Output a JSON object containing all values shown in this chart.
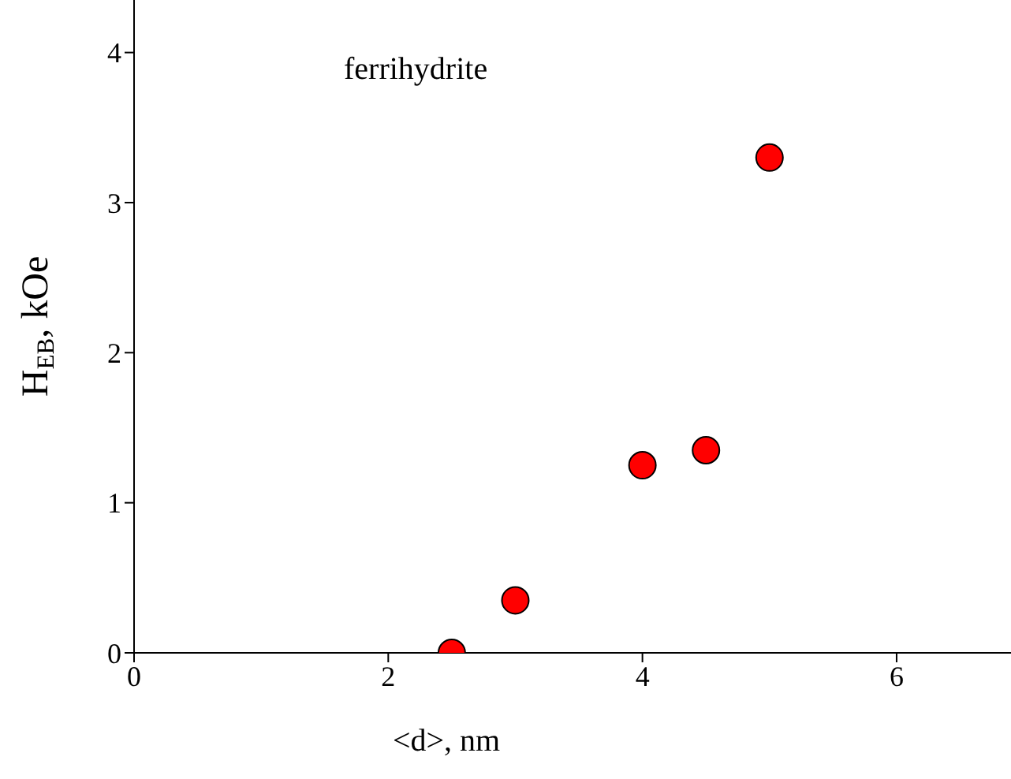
{
  "chart_data": {
    "type": "scatter",
    "xlabel": "<d>, nm",
    "ylabel": "H$_{EB}$, kOe",
    "annotations": [
      "ferrihydrite"
    ],
    "x": [
      2.5,
      3,
      4,
      4.5,
      5
    ],
    "series": [
      {
        "color": "#ff0000",
        "values": [
          0,
          0.35,
          1.25,
          1.35,
          3.3
        ]
      }
    ],
    "xlim": [
      0,
      6.9
    ],
    "xticks": [
      0,
      2,
      4,
      6
    ],
    "ylim": [
      0,
      4.35
    ],
    "yticks": [
      0,
      1,
      2,
      3,
      4
    ],
    "marker": "circle"
  }
}
